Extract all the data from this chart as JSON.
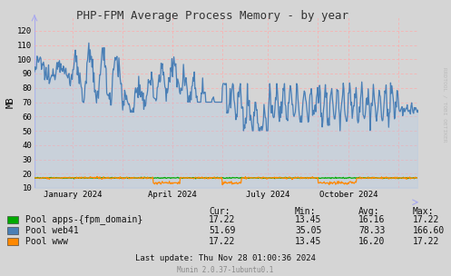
{
  "title": "PHP-FPM Average Process Memory - by year",
  "ylabel": "MB",
  "background_color": "#d5d5d5",
  "ylim": [
    10,
    130
  ],
  "yticks": [
    10,
    20,
    30,
    40,
    50,
    60,
    70,
    80,
    90,
    100,
    110,
    120
  ],
  "xtick_labels": [
    "January 2024",
    "April 2024",
    "July 2024",
    "October 2024"
  ],
  "xtick_positions": [
    0.1,
    0.36,
    0.61,
    0.82
  ],
  "red_vlines_x": [
    0.1,
    0.23,
    0.36,
    0.49,
    0.61,
    0.74,
    0.82,
    0.95
  ],
  "line_color_web41": "#4a7fb5",
  "fill_color_web41": "#b0c8e8",
  "line_color_apps": "#00aa00",
  "line_color_www": "#ff8800",
  "legend_items": [
    {
      "label": "Pool apps-{fpm_domain}",
      "color": "#00aa00"
    },
    {
      "label": "Pool web41",
      "color": "#4a7fb5"
    },
    {
      "label": "Pool www",
      "color": "#ff8800"
    }
  ],
  "table_headers": [
    "Cur:",
    "Min:",
    "Avg:",
    "Max:"
  ],
  "table_data": [
    [
      "17.22",
      "13.45",
      "16.16",
      "17.22"
    ],
    [
      "51.69",
      "35.05",
      "78.33",
      "166.60"
    ],
    [
      "17.22",
      "13.45",
      "16.20",
      "17.22"
    ]
  ],
  "last_update": "Last update: Thu Nov 28 01:00:36 2024",
  "munin_version": "Munin 2.0.37-1ubuntu0.1",
  "rrdtool_text": "RRDTOOL / TOBI OETIKER"
}
